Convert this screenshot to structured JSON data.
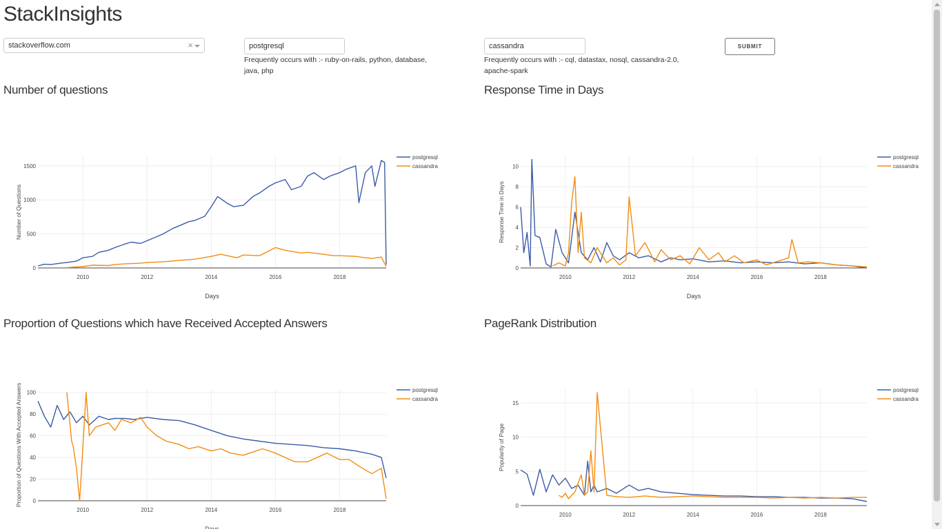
{
  "app": {
    "title": "StackInsights"
  },
  "controls": {
    "site": {
      "value": "stackoverflow.com",
      "clear": "×"
    },
    "tag1": {
      "value": "postgresql",
      "freq": "Frequently occurs with :- ruby-on-rails, python, database, java, php"
    },
    "tag2": {
      "value": "cassandra",
      "freq": "Frequently occurs with :- cql, datastax, nosql, cassandra-2.0, apache-spark"
    },
    "submit_label": "SUBMIT"
  },
  "colors": {
    "postgresql": "#3b5ba5",
    "cassandra": "#f28c0f"
  },
  "chart_data": [
    {
      "type": "line",
      "title": "Number of questions",
      "xlabel": "Days",
      "ylabel": "Number of Questions",
      "xlim": [
        2008.6,
        2019.45
      ],
      "ylim": [
        0,
        1640
      ],
      "xticks": [
        2010,
        2012,
        2014,
        2016,
        2018
      ],
      "yticks": [
        0,
        500,
        1000,
        1500
      ],
      "legend_placement": "top-right",
      "grid": true,
      "series": [
        {
          "name": "postgresql",
          "x": [
            2008.6,
            2008.8,
            2009.0,
            2009.3,
            2009.5,
            2009.8,
            2010.0,
            2010.3,
            2010.5,
            2010.8,
            2011.0,
            2011.3,
            2011.5,
            2011.8,
            2012.0,
            2012.3,
            2012.5,
            2012.8,
            2013.0,
            2013.3,
            2013.5,
            2013.8,
            2014.0,
            2014.2,
            2014.5,
            2014.7,
            2015.0,
            2015.3,
            2015.5,
            2015.8,
            2016.0,
            2016.3,
            2016.5,
            2016.8,
            2017.0,
            2017.2,
            2017.5,
            2017.7,
            2018.0,
            2018.2,
            2018.5,
            2018.6,
            2018.8,
            2019.0,
            2019.1,
            2019.3,
            2019.4,
            2019.45
          ],
          "y": [
            30,
            55,
            50,
            70,
            80,
            100,
            150,
            170,
            230,
            260,
            300,
            350,
            380,
            360,
            400,
            460,
            500,
            580,
            620,
            680,
            700,
            760,
            900,
            1050,
            950,
            900,
            920,
            1050,
            1100,
            1200,
            1250,
            1300,
            1150,
            1200,
            1350,
            1400,
            1300,
            1350,
            1400,
            1450,
            1500,
            960,
            1400,
            1500,
            1200,
            1580,
            1550,
            50
          ]
        },
        {
          "name": "cassandra",
          "x": [
            2009.5,
            2010.0,
            2010.3,
            2010.8,
            2011.0,
            2011.3,
            2011.8,
            2012.0,
            2012.5,
            2013.0,
            2013.5,
            2014.0,
            2014.3,
            2014.8,
            2015.0,
            2015.5,
            2015.8,
            2016.0,
            2016.3,
            2016.8,
            2017.0,
            2017.5,
            2017.8,
            2018.0,
            2018.5,
            2018.8,
            2019.0,
            2019.3,
            2019.45
          ],
          "y": [
            5,
            20,
            40,
            35,
            50,
            60,
            70,
            80,
            90,
            110,
            130,
            170,
            200,
            150,
            190,
            180,
            250,
            300,
            260,
            220,
            230,
            200,
            180,
            180,
            170,
            150,
            140,
            160,
            20
          ]
        }
      ]
    },
    {
      "type": "line",
      "title": "Response Time in Days",
      "xlabel": "Days",
      "ylabel": "Response Time in Days",
      "xlim": [
        2008.6,
        2019.45
      ],
      "ylim": [
        0,
        11
      ],
      "xticks": [
        2010,
        2012,
        2014,
        2016,
        2018
      ],
      "yticks": [
        0,
        2,
        4,
        6,
        8,
        10
      ],
      "legend_placement": "top-right",
      "grid": true,
      "series": [
        {
          "name": "postgresql",
          "x": [
            2008.6,
            2008.7,
            2008.8,
            2008.9,
            2008.95,
            2009.05,
            2009.2,
            2009.4,
            2009.55,
            2009.7,
            2009.9,
            2010.1,
            2010.3,
            2010.5,
            2010.7,
            2010.9,
            2011.1,
            2011.3,
            2011.5,
            2011.7,
            2012.0,
            2012.3,
            2012.6,
            2013.0,
            2013.3,
            2013.6,
            2014.0,
            2014.5,
            2015.0,
            2015.5,
            2016.0,
            2016.5,
            2017.0,
            2017.5,
            2018.0,
            2018.5,
            2019.0,
            2019.45
          ],
          "y": [
            6,
            1.5,
            3.5,
            0.2,
            10.7,
            3.2,
            3.0,
            0.4,
            0.1,
            3.8,
            1.5,
            0.5,
            5.5,
            1.5,
            0.8,
            2.0,
            0.6,
            2.5,
            1.2,
            0.8,
            1.5,
            1.0,
            1.2,
            0.6,
            1.0,
            0.8,
            0.9,
            0.6,
            0.7,
            0.5,
            0.6,
            0.5,
            0.6,
            0.4,
            0.5,
            0.3,
            0.2,
            0.0
          ]
        },
        {
          "name": "cassandra",
          "x": [
            2009.6,
            2009.8,
            2010.0,
            2010.1,
            2010.2,
            2010.3,
            2010.4,
            2010.5,
            2010.6,
            2010.8,
            2011.0,
            2011.3,
            2011.5,
            2011.7,
            2011.9,
            2012.0,
            2012.2,
            2012.5,
            2012.8,
            2013.0,
            2013.3,
            2013.6,
            2013.9,
            2014.2,
            2014.5,
            2014.8,
            2015.0,
            2015.3,
            2015.6,
            2016.0,
            2016.3,
            2016.6,
            2017.0,
            2017.1,
            2017.3,
            2017.6,
            2018.0,
            2018.5,
            2019.0,
            2019.45
          ],
          "y": [
            0.2,
            0.5,
            0.2,
            1.5,
            6.5,
            9.0,
            1.5,
            5.5,
            1.0,
            0.5,
            2.0,
            0.5,
            1.0,
            0.3,
            0.8,
            7.0,
            1.2,
            2.5,
            0.6,
            1.8,
            0.8,
            1.2,
            0.4,
            2.0,
            0.8,
            1.5,
            0.6,
            1.2,
            0.5,
            0.8,
            0.3,
            0.6,
            1.0,
            2.8,
            0.5,
            0.6,
            0.5,
            0.3,
            0.2,
            0.1
          ]
        }
      ]
    },
    {
      "type": "line",
      "title": "Proportion of Questions which have Received Accepted Answers",
      "xlabel": "Days",
      "ylabel": "Proportion of Questions With Accepted Answers",
      "xlim": [
        2008.6,
        2019.45
      ],
      "ylim": [
        0,
        103
      ],
      "xticks": [
        2010,
        2012,
        2014,
        2016,
        2018
      ],
      "yticks": [
        0,
        20,
        40,
        60,
        80,
        100
      ],
      "legend_placement": "top-right",
      "grid": true,
      "series": [
        {
          "name": "postgresql",
          "x": [
            2008.6,
            2008.8,
            2009.0,
            2009.2,
            2009.4,
            2009.6,
            2009.8,
            2010.0,
            2010.2,
            2010.5,
            2010.8,
            2011.0,
            2011.3,
            2011.6,
            2012.0,
            2012.5,
            2013.0,
            2013.5,
            2014.0,
            2014.5,
            2015.0,
            2015.5,
            2016.0,
            2016.5,
            2017.0,
            2017.5,
            2018.0,
            2018.5,
            2019.0,
            2019.3,
            2019.45
          ],
          "y": [
            92,
            78,
            68,
            88,
            75,
            82,
            72,
            78,
            70,
            78,
            75,
            76,
            76,
            75,
            77,
            75,
            74,
            70,
            65,
            60,
            57,
            55,
            53,
            52,
            51,
            49,
            48,
            46,
            43,
            40,
            21
          ]
        },
        {
          "name": "cassandra",
          "x": [
            2009.5,
            2009.65,
            2009.7,
            2009.8,
            2009.9,
            2010.0,
            2010.1,
            2010.2,
            2010.4,
            2010.6,
            2010.8,
            2011.0,
            2011.2,
            2011.5,
            2011.8,
            2012.0,
            2012.3,
            2012.6,
            2013.0,
            2013.3,
            2013.6,
            2014.0,
            2014.3,
            2014.6,
            2015.0,
            2015.3,
            2015.6,
            2016.0,
            2016.3,
            2016.6,
            2017.0,
            2017.3,
            2017.6,
            2018.0,
            2018.3,
            2018.6,
            2019.0,
            2019.3,
            2019.45
          ],
          "y": [
            100,
            55,
            50,
            30,
            0,
            50,
            100,
            60,
            68,
            70,
            72,
            65,
            75,
            72,
            77,
            68,
            60,
            55,
            52,
            48,
            50,
            46,
            48,
            44,
            42,
            45,
            48,
            44,
            40,
            36,
            36,
            40,
            44,
            38,
            38,
            32,
            25,
            30,
            2
          ]
        }
      ]
    },
    {
      "type": "line",
      "title": "PageRank Distribution",
      "xlabel": "Days",
      "ylabel": "Popularity of Page",
      "xlim": [
        2008.6,
        2019.45
      ],
      "ylim": [
        0,
        17
      ],
      "xticks": [
        2010,
        2012,
        2014,
        2016,
        2018
      ],
      "yticks": [
        0,
        5,
        10,
        15
      ],
      "legend_placement": "top-right",
      "grid": true,
      "series": [
        {
          "name": "postgresql",
          "x": [
            2008.6,
            2008.8,
            2009.0,
            2009.2,
            2009.4,
            2009.6,
            2009.8,
            2010.0,
            2010.2,
            2010.4,
            2010.6,
            2010.7,
            2010.8,
            2010.9,
            2011.0,
            2011.3,
            2011.6,
            2012.0,
            2012.3,
            2012.6,
            2013.0,
            2013.5,
            2014.0,
            2014.5,
            2015.0,
            2015.5,
            2016.0,
            2016.5,
            2017.0,
            2017.5,
            2018.0,
            2018.5,
            2019.0,
            2019.45
          ],
          "y": [
            5.2,
            4.6,
            1.5,
            5.3,
            2.0,
            4.5,
            3.0,
            4.0,
            2.5,
            3.0,
            1.5,
            6.5,
            2.0,
            3.0,
            2.0,
            2.5,
            1.8,
            3.0,
            2.2,
            2.5,
            2.0,
            1.8,
            1.6,
            1.5,
            1.4,
            1.4,
            1.3,
            1.3,
            1.2,
            1.2,
            1.1,
            1.1,
            1.0,
            0.6
          ]
        },
        {
          "name": "cassandra",
          "x": [
            2009.8,
            2009.9,
            2010.0,
            2010.1,
            2010.3,
            2010.5,
            2010.6,
            2010.7,
            2010.8,
            2010.9,
            2011.0,
            2011.3,
            2011.6,
            2012.0,
            2012.5,
            2013.0,
            2013.5,
            2014.0,
            2014.5,
            2015.0,
            2015.5,
            2016.0,
            2016.5,
            2017.0,
            2017.5,
            2018.0,
            2018.5,
            2019.0,
            2019.45
          ],
          "y": [
            1.5,
            1.2,
            1.8,
            1.0,
            2.0,
            4.5,
            1.5,
            2.0,
            8.0,
            2.0,
            16.5,
            1.5,
            1.3,
            1.2,
            1.4,
            1.2,
            1.3,
            1.4,
            1.3,
            1.2,
            1.2,
            1.2,
            1.1,
            1.2,
            1.1,
            1.2,
            1.1,
            1.2,
            1.2
          ]
        }
      ]
    }
  ]
}
